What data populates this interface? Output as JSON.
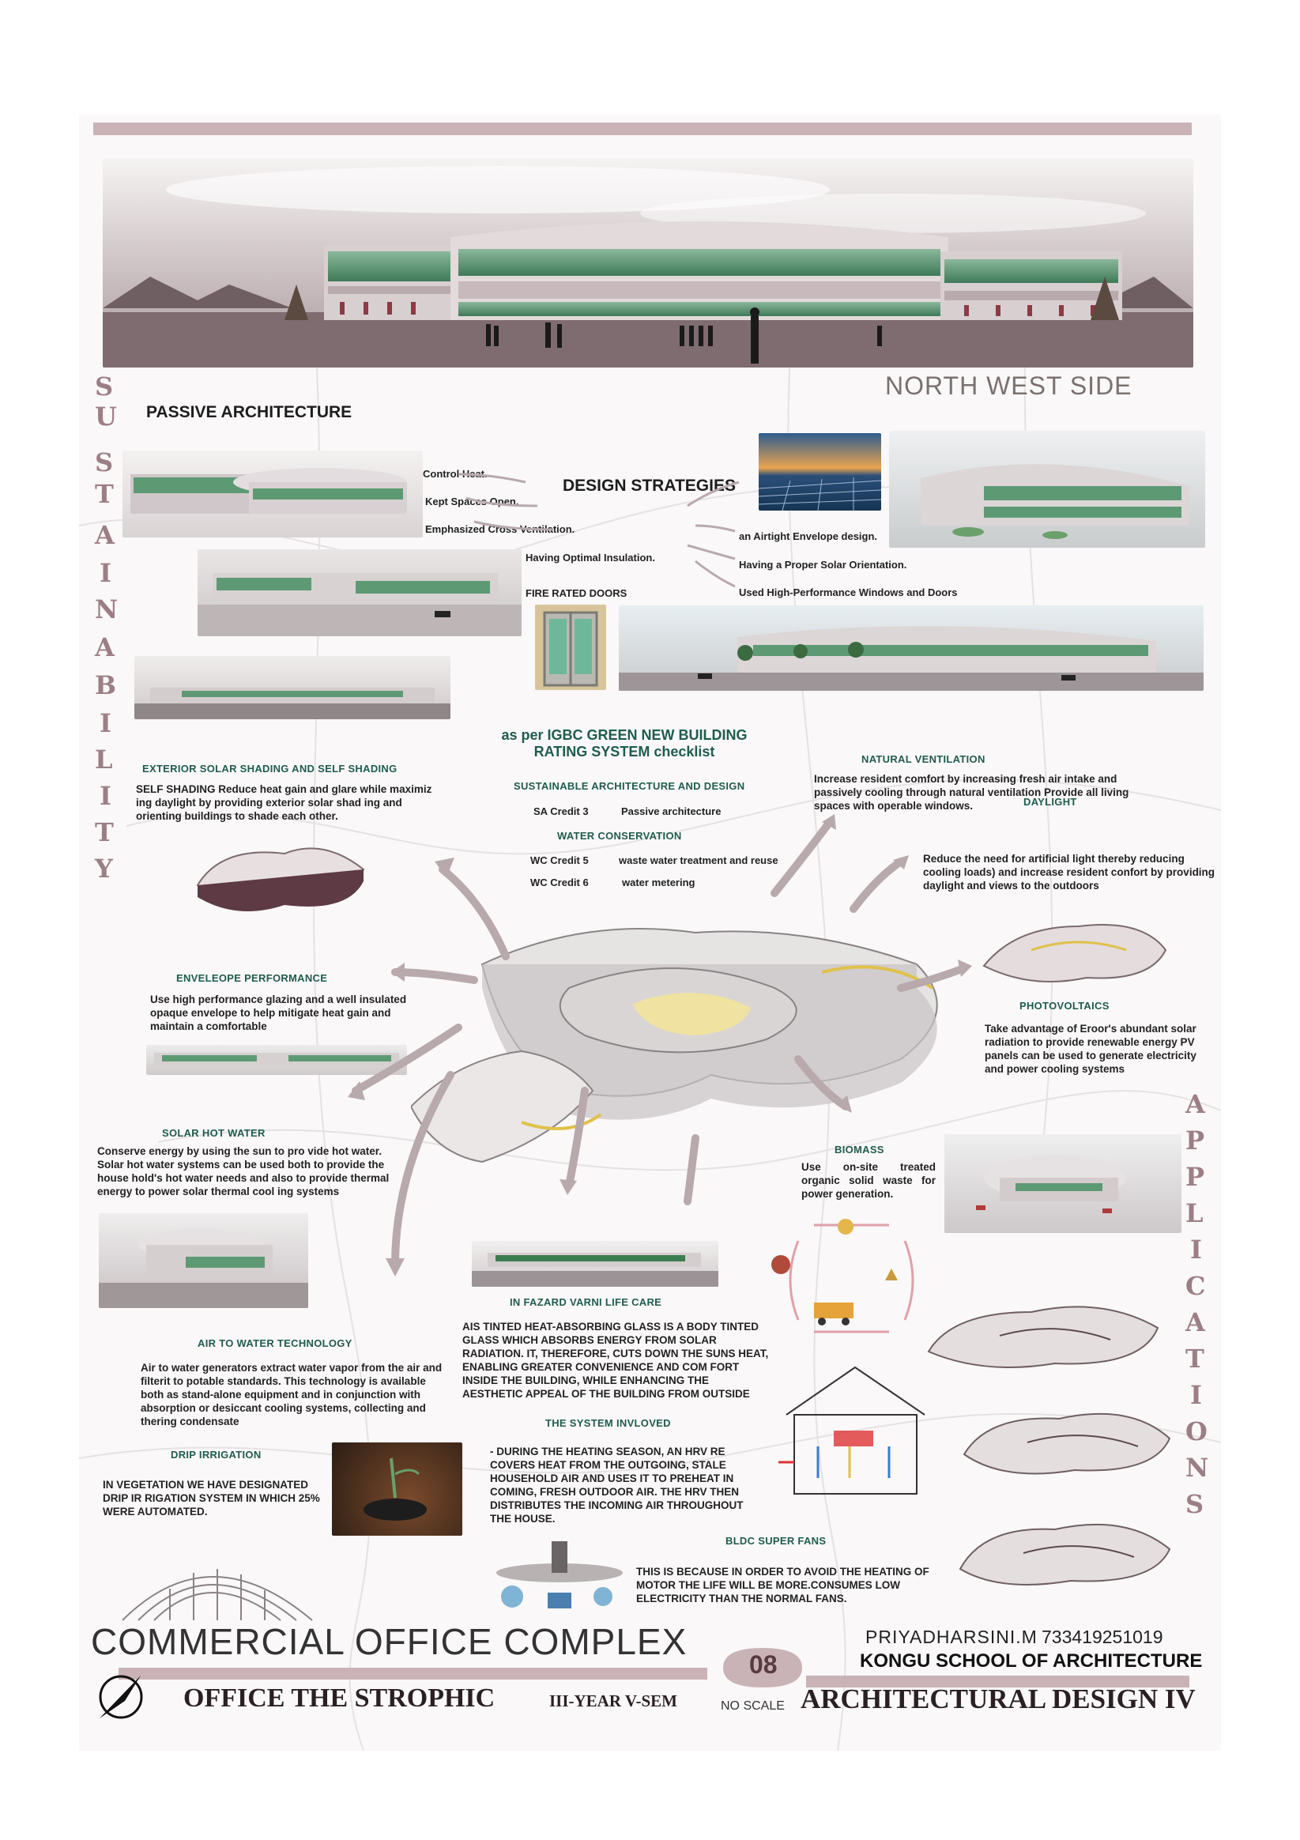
{
  "hero": {
    "caption": "NORTH WEST SIDE"
  },
  "vertical_left": [
    "S",
    "U",
    "S",
    "T",
    "A",
    "I",
    "N",
    "A",
    "B",
    "I",
    "L",
    "I",
    "T",
    "Y"
  ],
  "vertical_right": [
    "A",
    "P",
    "P",
    "L",
    "I",
    "C",
    "A",
    "T",
    "I",
    "O",
    "N",
    "S"
  ],
  "passive": {
    "title": "PASSIVE ARCHITECTURE",
    "design_strategies": "DESIGN STRATEGIES",
    "items_left": [
      "Control Heat.",
      "Kept Spaces Open.",
      "Emphasized Cross Ventilation.",
      "Having Optimal Insulation."
    ],
    "items_right": [
      "an Airtight Envelope design.",
      "Having a Proper Solar Orientation.",
      "Used High-Performance Windows and Doors"
    ],
    "fire_doors": "FIRE RATED DOORS"
  },
  "igbc": {
    "title_line1": "as per IGBC GREEN NEW BUILDING",
    "title_line2": "RATING SYSTEM checklist",
    "sa_head": "SUSTAINABLE ARCHITECTURE AND DESIGN",
    "sa_credit": "SA Credit 3",
    "sa_value": "Passive architecture",
    "wc_head": "WATER CONSERVATION",
    "wc5": "WC Credit 5",
    "wc5_value": "waste water treatment and reuse",
    "wc6": "WC Credit 6",
    "wc6_value": "water metering"
  },
  "sections": {
    "shading_title": "EXTERIOR SOLAR SHADING AND SELF SHADING",
    "shading_body": "SELF SHADING Reduce heat gain and glare while maximiz ing daylight by providing exterior solar shad ing and orienting buildings to shade each other.",
    "envelope_title": "ENVELEOPE PERFORMANCE",
    "envelope_body": "Use high performance glazing and a well insulated opaque envelope to help mitigate heat gain and maintain a comfortable",
    "solar_water_title": "SOLAR HOT WATER",
    "solar_water_body": "Conserve energy by using the sun to pro vide hot water. Solar hot water systems can be used both to provide the house hold's hot water needs and also to provide thermal energy to power solar thermal cool ing systems",
    "air_water_title": "AIR TO WATER TECHNOLOGY",
    "air_water_body": "Air to water generators extract water vapor from the air and filterit to potable standards. This technology is available both as stand-alone equipment and in conjunction with absorption or desiccant cooling systems, collecting and thering condensate",
    "drip_title": "DRIP IRRIGATION",
    "drip_body": "IN VEGETATION WE HAVE DESIGNATED DRIP IR RIGATION SYSTEM IN WHICH 25% WERE AUTOMATED.",
    "facade_title": "IN FAZARD VARNI LIFE CARE",
    "facade_body": "AIS TINTED HEAT-ABSORBING GLASS IS A BODY TINTED GLASS WHICH ABSORBS ENERGY FROM SOLAR RADIATION. IT, THEREFORE, CUTS DOWN THE SUNS HEAT, ENABLING GREATER CONVENIENCE AND COM FORT INSIDE THE BUILDING, WHILE ENHANCING THE AESTHETIC APPEAL OF THE BUILDING FROM OUTSIDE",
    "system_title": "THE SYSTEM INVLOVED",
    "system_body": "- DURING THE HEATING SEASON, AN HRV RE COVERS HEAT FROM THE OUTGOING, STALE HOUSEHOLD AIR AND USES IT TO PREHEAT IN COMING, FRESH OUTDOOR AIR. THE HRV THEN DISTRIBUTES THE INCOMING AIR THROUGHOUT THE HOUSE.",
    "fans_title": "BLDC SUPER FANS",
    "fans_body": "THIS IS BECAUSE IN ORDER TO AVOID THE HEATING OF MOTOR THE LIFE WILL BE MORE.CONSUMES LOW ELECTRICITY THAN THE NORMAL FANS.",
    "ventilation_title": "NATURAL VENTILATION",
    "ventilation_body": "Increase resident comfort by increasing fresh air intake and passively cooling through natural ventilation Provide all living spaces with operable windows.",
    "daylight_title": "DAYLIGHT",
    "daylight_body": "Reduce the need for artificial light thereby reducing cooling loads) and increase resident confort by providing daylight and views to the outdoors",
    "pv_title": "PHOTOVOLTAICS",
    "pv_body": "Take advantage of Eroor's abundant solar radiation to provide renewable energy PV panels can be used to generate electricity and power cooling systems",
    "biomass_title": "BIOMASS",
    "biomass_body": "Use on-site treated organic solid waste for power generation."
  },
  "footer": {
    "project": "COMMERCIAL OFFICE COMPLEX",
    "subtitle": "OFFICE THE STROPHIC",
    "year": "III-YEAR V-SEM",
    "sheet_no": "08",
    "scale": "NO SCALE",
    "author": "PRIYADHARSINI.M",
    "roll": "733419251019",
    "school": "KONGU SCHOOL OF ARCHITECTURE",
    "course": "ARCHITECTURAL DESIGN IV"
  },
  "colors": {
    "mauve": "#9c7f86",
    "bar": "#c9b3b6",
    "teal": "#1f5c4e",
    "glass": "#4f8f6b"
  }
}
